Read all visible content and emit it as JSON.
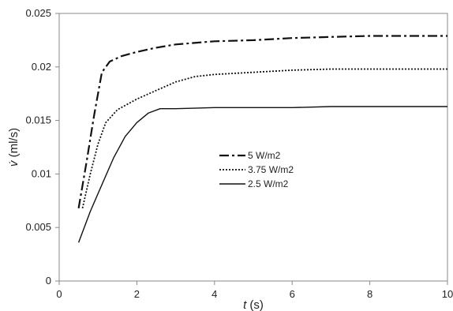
{
  "chart_data": {
    "type": "line",
    "xlabel_var": "t",
    "xlabel_unit": " (s)",
    "ylabel_var": "v̇",
    "ylabel_unit": " (ml/s)",
    "xlim": [
      0,
      10
    ],
    "ylim": [
      0,
      0.025
    ],
    "x_ticks": [
      0,
      2,
      4,
      6,
      8,
      10
    ],
    "y_ticks": [
      0,
      0.005,
      0.01,
      0.015,
      0.02,
      0.025
    ],
    "x_tick_labels": [
      "0",
      "2",
      "4",
      "6",
      "8",
      "10"
    ],
    "y_tick_labels": [
      "0",
      "0.005",
      "0.01",
      "0.015",
      "0.02",
      "0.025"
    ],
    "grid": false,
    "legend_position": "center",
    "series": [
      {
        "name": "5 W/m2",
        "dash": "dash-dot",
        "x": [
          0.5,
          0.7,
          0.9,
          1.1,
          1.3,
          1.6,
          2.0,
          2.5,
          3.0,
          4.0,
          5.0,
          6.0,
          7.0,
          8.0,
          9.0,
          10.0
        ],
        "y": [
          0.0068,
          0.011,
          0.0155,
          0.0195,
          0.0205,
          0.021,
          0.0214,
          0.0218,
          0.0221,
          0.0224,
          0.0225,
          0.0227,
          0.0228,
          0.0229,
          0.0229,
          0.0229
        ]
      },
      {
        "name": "3.75 W/m2",
        "dash": "dotted",
        "x": [
          0.6,
          0.8,
          1.0,
          1.2,
          1.5,
          2.0,
          2.5,
          3.0,
          3.5,
          4.0,
          5.0,
          6.0,
          7.0,
          8.0,
          9.0,
          10.0
        ],
        "y": [
          0.0068,
          0.01,
          0.0128,
          0.0148,
          0.016,
          0.017,
          0.0178,
          0.0186,
          0.0191,
          0.0193,
          0.0195,
          0.0197,
          0.0198,
          0.0198,
          0.0198,
          0.0198
        ]
      },
      {
        "name": "2.5 W/m2",
        "dash": "solid",
        "x": [
          0.5,
          0.8,
          1.1,
          1.4,
          1.7,
          2.0,
          2.3,
          2.6,
          3.0,
          4.0,
          5.0,
          6.0,
          7.0,
          8.0,
          9.0,
          10.0
        ],
        "y": [
          0.0036,
          0.0065,
          0.009,
          0.0115,
          0.0135,
          0.0148,
          0.0157,
          0.0161,
          0.0161,
          0.0162,
          0.0162,
          0.0162,
          0.0163,
          0.0163,
          0.0163,
          0.0163
        ]
      }
    ]
  }
}
